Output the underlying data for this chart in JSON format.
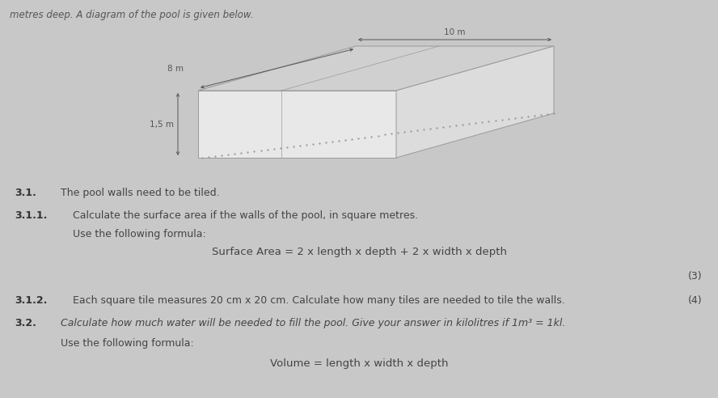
{
  "bg_color": "#c8c8c8",
  "header_text": "metres deep. A diagram of the pool is given below.",
  "header_fontsize": 8.5,
  "header_color": "#555555",
  "dim_length": "10 m",
  "dim_width": "8 m",
  "dim_depth": "1,5 m",
  "section_31": "3.1.",
  "text_31": "The pool walls need to be tiled.",
  "section_311": "3.1.1.",
  "text_311": "Calculate the surface area if the walls of the pool, in square metres.",
  "text_311b": "Use the following formula:",
  "formula_311": "Surface Area = 2 x length x depth + 2 x width x depth",
  "marks_311": "(3)",
  "section_312": "3.1.2.",
  "text_312": "Each square tile measures 20 cm x 20 cm. Calculate how many tiles are needed to tile the walls.",
  "marks_312": "(4)",
  "section_32": "3.2.",
  "text_32": "Calculate how much water will be needed to fill the pool. Give your answer in kilolitres if 1m³ = 1kl.",
  "text_32b": "Use the following formula:",
  "formula_32": "Volume = length x width x depth",
  "body_fontsize": 9,
  "formula_fontsize": 9.5,
  "pool_line_color": "#999999",
  "pool_front_color": "#e8e8e8",
  "pool_top_color": "#d0d0d0",
  "pool_right_color": "#dcdcdc",
  "pool_interior_color": "#e4e4e4"
}
